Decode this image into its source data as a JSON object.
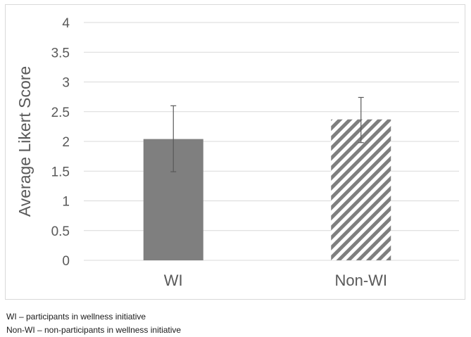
{
  "chart_data": {
    "type": "bar",
    "categories": [
      "WI",
      "Non-WI"
    ],
    "values": [
      2.04,
      2.37
    ],
    "error_low": [
      1.49,
      1.98
    ],
    "error_high": [
      2.6,
      2.74
    ],
    "ylabel": "Average Likert Score",
    "xlabel": "",
    "ylim": [
      0,
      4
    ],
    "yticks": [
      "0",
      "0.5",
      "1",
      "1.5",
      "2",
      "2.5",
      "3",
      "3.5",
      "4"
    ],
    "grid": true,
    "bar_styles": [
      "solid",
      "diagonal-hatch"
    ],
    "colors": {
      "bar": "#7f7f7f",
      "grid": "#d9d9d9",
      "error": "#595959",
      "border": "#d9d9d9"
    }
  },
  "notes": [
    "WI – participants in wellness initiative",
    "Non-WI – non-participants in wellness initiative"
  ]
}
